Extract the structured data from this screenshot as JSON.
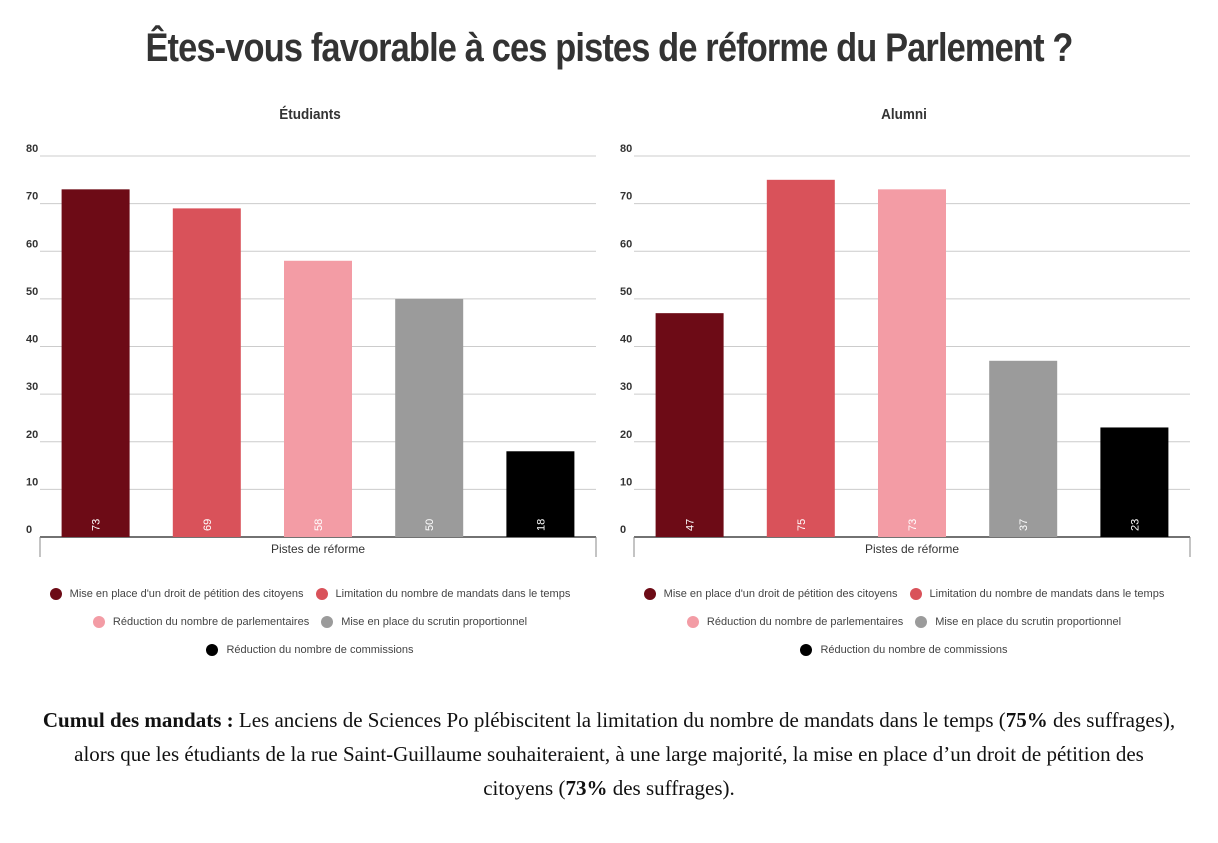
{
  "title": "Êtes-vous favorable à ces pistes de réforme du Parlement ?",
  "colors": [
    "#6d0b16",
    "#d9525a",
    "#f39ca5",
    "#9b9b9b",
    "#000000"
  ],
  "chart_data": [
    {
      "type": "bar",
      "title": "Étudiants",
      "xlabel": "Pistes de réforme",
      "ylabel": "",
      "ylim": [
        0,
        80
      ],
      "yticks": [
        0,
        10,
        20,
        30,
        40,
        50,
        60,
        70,
        80
      ],
      "grid": true,
      "categories": [
        "Mise en place d'un droit de pétition des citoyens",
        "Limitation du nombre de mandats dans le temps",
        "Réduction du nombre de parlementaires",
        "Mise en place du scrutin proportionnel",
        "Réduction du nombre de commissions"
      ],
      "values": [
        73,
        69,
        58,
        50,
        18
      ]
    },
    {
      "type": "bar",
      "title": "Alumni",
      "xlabel": "Pistes de réforme",
      "ylabel": "",
      "ylim": [
        0,
        80
      ],
      "yticks": [
        0,
        10,
        20,
        30,
        40,
        50,
        60,
        70,
        80
      ],
      "grid": true,
      "categories": [
        "Mise en place d'un droit de pétition des citoyens",
        "Limitation du nombre de mandats dans le temps",
        "Réduction du nombre de parlementaires",
        "Mise en place du scrutin proportionnel",
        "Réduction du nombre de commissions"
      ],
      "values": [
        47,
        75,
        73,
        37,
        23
      ]
    }
  ],
  "caption": {
    "lead": "Cumul des mandats",
    "sep": " : ",
    "part1": "Les anciens de Sciences Po plébiscitent la limitation du nombre de mandats dans le temps (",
    "pct1": "75%",
    "part2": " des suffrages), alors que les étudiants de la rue Saint-Guillaume souhaiteraient, à une large majorité, la mise en place d’un droit de pétition des citoyens (",
    "pct2": "73%",
    "part3": " des suffrages)."
  }
}
